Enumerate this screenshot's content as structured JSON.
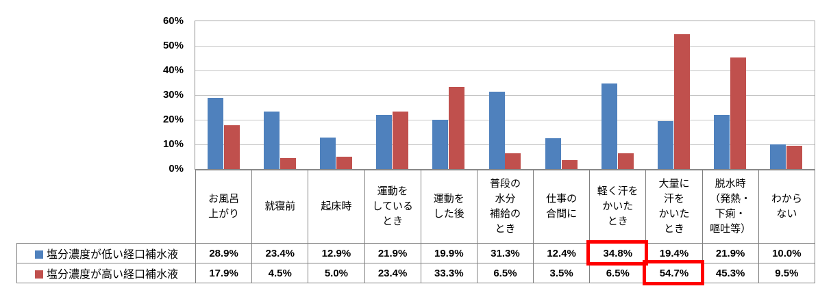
{
  "figure": {
    "description": "grouped bar chart with data table, survey of when people drink oral rehydration solutions"
  },
  "chart_data": {
    "type": "bar",
    "title": "",
    "xlabel": "",
    "ylabel": "",
    "ylim": [
      0,
      60
    ],
    "ytick_step": 10,
    "ytick_labels": [
      "60%",
      "50%",
      "40%",
      "30%",
      "20%",
      "10%",
      "0%"
    ],
    "grid": true,
    "legend_position": "table rows below chart",
    "categories": [
      "お風呂上がり",
      "就寝前",
      "起床時",
      "運動をしているとき",
      "運動をした後",
      "普段の水分補給のとき",
      "仕事の合間に",
      "軽く汗をかいたとき",
      "大量に汗をかいたとき",
      "脱水時（発熱・下痢・嘔吐等）",
      "わからない"
    ],
    "categories_display": [
      "お風呂\n上がり",
      "就寝前",
      "起床時",
      "運動を\nしている\nとき",
      "運動を\nした後",
      "普段の\n水分\n補給の\nとき",
      "仕事の\n合間に",
      "軽く汗を\nかいた\nとき",
      "大量に\n汗を\nかいた\nとき",
      "脱水時\n（発熱・\n下痢・\n嘔吐等）",
      "わから\nない"
    ],
    "series": [
      {
        "name": "塩分濃度が低い経口補水液",
        "color": "#4F81BD",
        "values": [
          28.9,
          23.4,
          12.9,
          21.9,
          19.9,
          31.3,
          12.4,
          34.8,
          19.4,
          21.9,
          10.0
        ],
        "labels": [
          "28.9%",
          "23.4%",
          "12.9%",
          "21.9%",
          "19.9%",
          "31.3%",
          "12.4%",
          "34.8%",
          "19.4%",
          "21.9%",
          "10.0%"
        ]
      },
      {
        "name": "塩分濃度が高い経口補水液",
        "color": "#C0504D",
        "values": [
          17.9,
          4.5,
          5.0,
          23.4,
          33.3,
          6.5,
          3.5,
          6.5,
          54.7,
          45.3,
          9.5
        ],
        "labels": [
          "17.9%",
          "4.5%",
          "5.0%",
          "23.4%",
          "33.3%",
          "6.5%",
          "3.5%",
          "6.5%",
          "54.7%",
          "45.3%",
          "9.5%"
        ]
      }
    ]
  },
  "highlights": [
    {
      "series": 0,
      "category_index": 7,
      "value": "34.8%",
      "color": "#FF0000"
    },
    {
      "series": 1,
      "category_index": 8,
      "value": "54.7%",
      "color": "#FF0000"
    }
  ],
  "colors": {
    "series_low_salt": "#4F81BD",
    "series_high_salt": "#C0504D",
    "gridline": "#C4C4C4",
    "plot_border": "#A6A6A6",
    "table_border": "#808080",
    "highlight": "#FF0000",
    "text": "#000000",
    "background": "#FFFFFF"
  }
}
